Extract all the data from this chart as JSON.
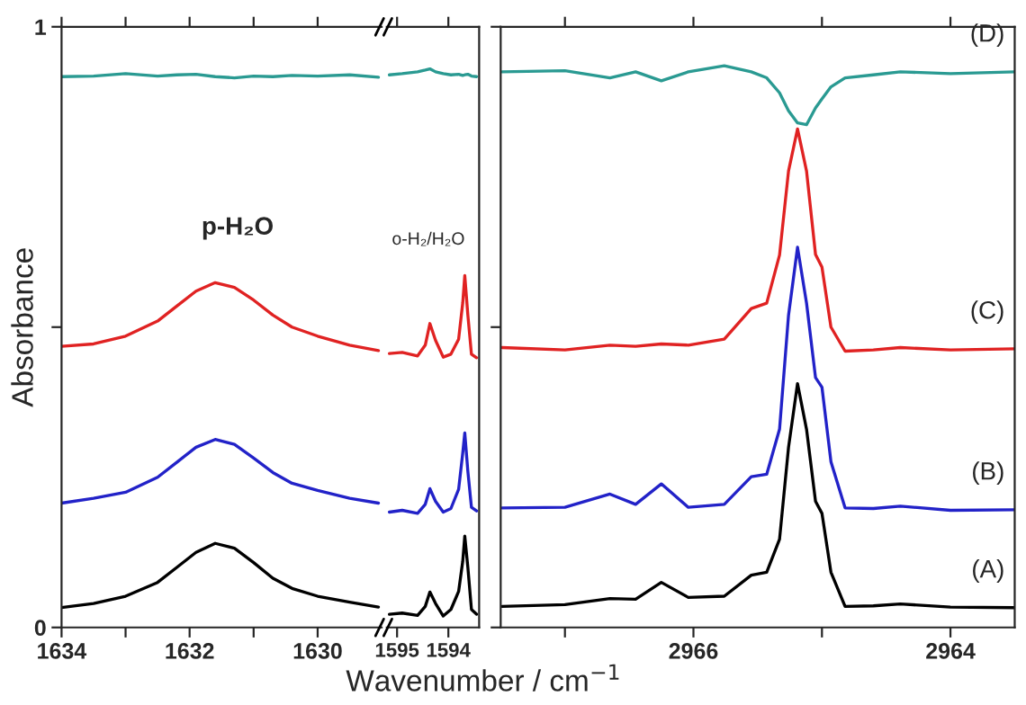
{
  "chart_data": [
    {
      "type": "line",
      "ylabel": "Absorbance",
      "xlim": [
        1634,
        1629.0
      ],
      "xticks": [
        1634,
        {
          "value": 1633,
          "label": null
        },
        1632,
        {
          "value": 1631,
          "label": null
        },
        1630
      ],
      "ylim": [
        0,
        1
      ],
      "yticks": [
        0,
        {
          "value": 0.5,
          "label": null
        },
        1
      ],
      "x": [
        1634,
        1633.5,
        1633,
        1632.5,
        1632.2,
        1631.9,
        1631.6,
        1631.3,
        1631.0,
        1630.7,
        1630.4,
        1630.0,
        1629.5,
        1629.05
      ],
      "series": [
        {
          "color": "#000000",
          "values": [
            0.033,
            0.04,
            0.052,
            0.075,
            0.1,
            0.125,
            0.14,
            0.132,
            0.108,
            0.082,
            0.065,
            0.052,
            0.042,
            0.034
          ]
        },
        {
          "color": "#2222c8",
          "values": [
            0.207,
            0.215,
            0.225,
            0.25,
            0.275,
            0.3,
            0.313,
            0.305,
            0.282,
            0.258,
            0.24,
            0.228,
            0.215,
            0.207
          ]
        },
        {
          "color": "#e02222",
          "values": [
            0.468,
            0.472,
            0.485,
            0.51,
            0.535,
            0.56,
            0.574,
            0.566,
            0.545,
            0.52,
            0.5,
            0.485,
            0.47,
            0.461
          ]
        },
        {
          "color": "#2a9a92",
          "values": [
            0.917,
            0.918,
            0.922,
            0.918,
            0.92,
            0.921,
            0.917,
            0.915,
            0.918,
            0.917,
            0.919,
            0.918,
            0.92,
            0.916
          ]
        }
      ],
      "annotations": [
        "p-H₂O"
      ]
    },
    {
      "type": "line",
      "xlabel": "Wavenumber / cm$^{−1}$",
      "tick_labels": "x",
      "xlim": [
        1595.2,
        1593.4
      ],
      "xticks": [
        1595,
        1594
      ],
      "ylim": [
        0,
        1
      ],
      "x": [
        1595.15,
        1594.9,
        1594.6,
        1594.45,
        1594.36,
        1594.25,
        1594.1,
        1593.95,
        1593.8,
        1593.72,
        1593.68,
        1593.62,
        1593.55,
        1593.45
      ],
      "series": [
        {
          "color": "#000000",
          "values": [
            0.022,
            0.024,
            0.02,
            0.035,
            0.059,
            0.04,
            0.019,
            0.03,
            0.06,
            0.11,
            0.152,
            0.1,
            0.03,
            0.022
          ]
        },
        {
          "color": "#2222c8",
          "values": [
            0.192,
            0.195,
            0.19,
            0.205,
            0.231,
            0.21,
            0.192,
            0.198,
            0.23,
            0.29,
            0.324,
            0.26,
            0.2,
            0.194
          ]
        },
        {
          "color": "#e02222",
          "values": [
            0.456,
            0.458,
            0.452,
            0.47,
            0.506,
            0.478,
            0.45,
            0.455,
            0.48,
            0.54,
            0.586,
            0.52,
            0.455,
            0.449
          ]
        },
        {
          "color": "#2a9a92",
          "values": [
            0.92,
            0.922,
            0.925,
            0.928,
            0.93,
            0.925,
            0.922,
            0.92,
            0.921,
            0.919,
            0.92,
            0.921,
            0.918,
            0.917
          ]
        }
      ],
      "annotations": [
        "o-H₂/H₂O"
      ]
    },
    {
      "type": "line",
      "tick_labels": "x",
      "xlim": [
        2967.5,
        2963.5
      ],
      "xticks": [
        {
          "value": 2967,
          "label": null
        },
        2966,
        {
          "value": 2965,
          "label": null
        },
        2964
      ],
      "ylim": [
        0,
        1
      ],
      "yticks": [
        {
          "value": 0,
          "label": null
        },
        {
          "value": 0.5,
          "label": null
        },
        {
          "value": 1,
          "label": null
        }
      ],
      "x": [
        2967.49,
        2967.0,
        2966.65,
        2966.45,
        2966.25,
        2966.04,
        2965.76,
        2965.55,
        2965.43,
        2965.33,
        2965.26,
        2965.19,
        2965.12,
        2965.05,
        2965.0,
        2964.93,
        2964.82,
        2964.6,
        2964.39,
        2964.0,
        2963.5
      ],
      "series": [
        {
          "name": "(A)",
          "color": "#000000",
          "values": [
            0.035,
            0.038,
            0.048,
            0.047,
            0.075,
            0.05,
            0.052,
            0.087,
            0.092,
            0.147,
            0.3,
            0.406,
            0.33,
            0.21,
            0.19,
            0.092,
            0.035,
            0.036,
            0.039,
            0.034,
            0.033
          ]
        },
        {
          "name": "(B)",
          "color": "#2222c8",
          "values": [
            0.199,
            0.2,
            0.222,
            0.205,
            0.239,
            0.2,
            0.205,
            0.251,
            0.255,
            0.33,
            0.52,
            0.633,
            0.54,
            0.416,
            0.4,
            0.276,
            0.199,
            0.198,
            0.202,
            0.195,
            0.196
          ]
        },
        {
          "name": "(C)",
          "color": "#e02222",
          "values": [
            0.466,
            0.462,
            0.47,
            0.468,
            0.472,
            0.47,
            0.48,
            0.531,
            0.54,
            0.62,
            0.76,
            0.83,
            0.76,
            0.621,
            0.6,
            0.5,
            0.46,
            0.462,
            0.466,
            0.462,
            0.464
          ]
        },
        {
          "name": "(D)",
          "color": "#2a9a92",
          "values": [
            0.925,
            0.927,
            0.915,
            0.925,
            0.91,
            0.925,
            0.935,
            0.925,
            0.915,
            0.89,
            0.86,
            0.84,
            0.837,
            0.865,
            0.88,
            0.9,
            0.915,
            0.92,
            0.925,
            0.922,
            0.925
          ]
        }
      ]
    }
  ]
}
